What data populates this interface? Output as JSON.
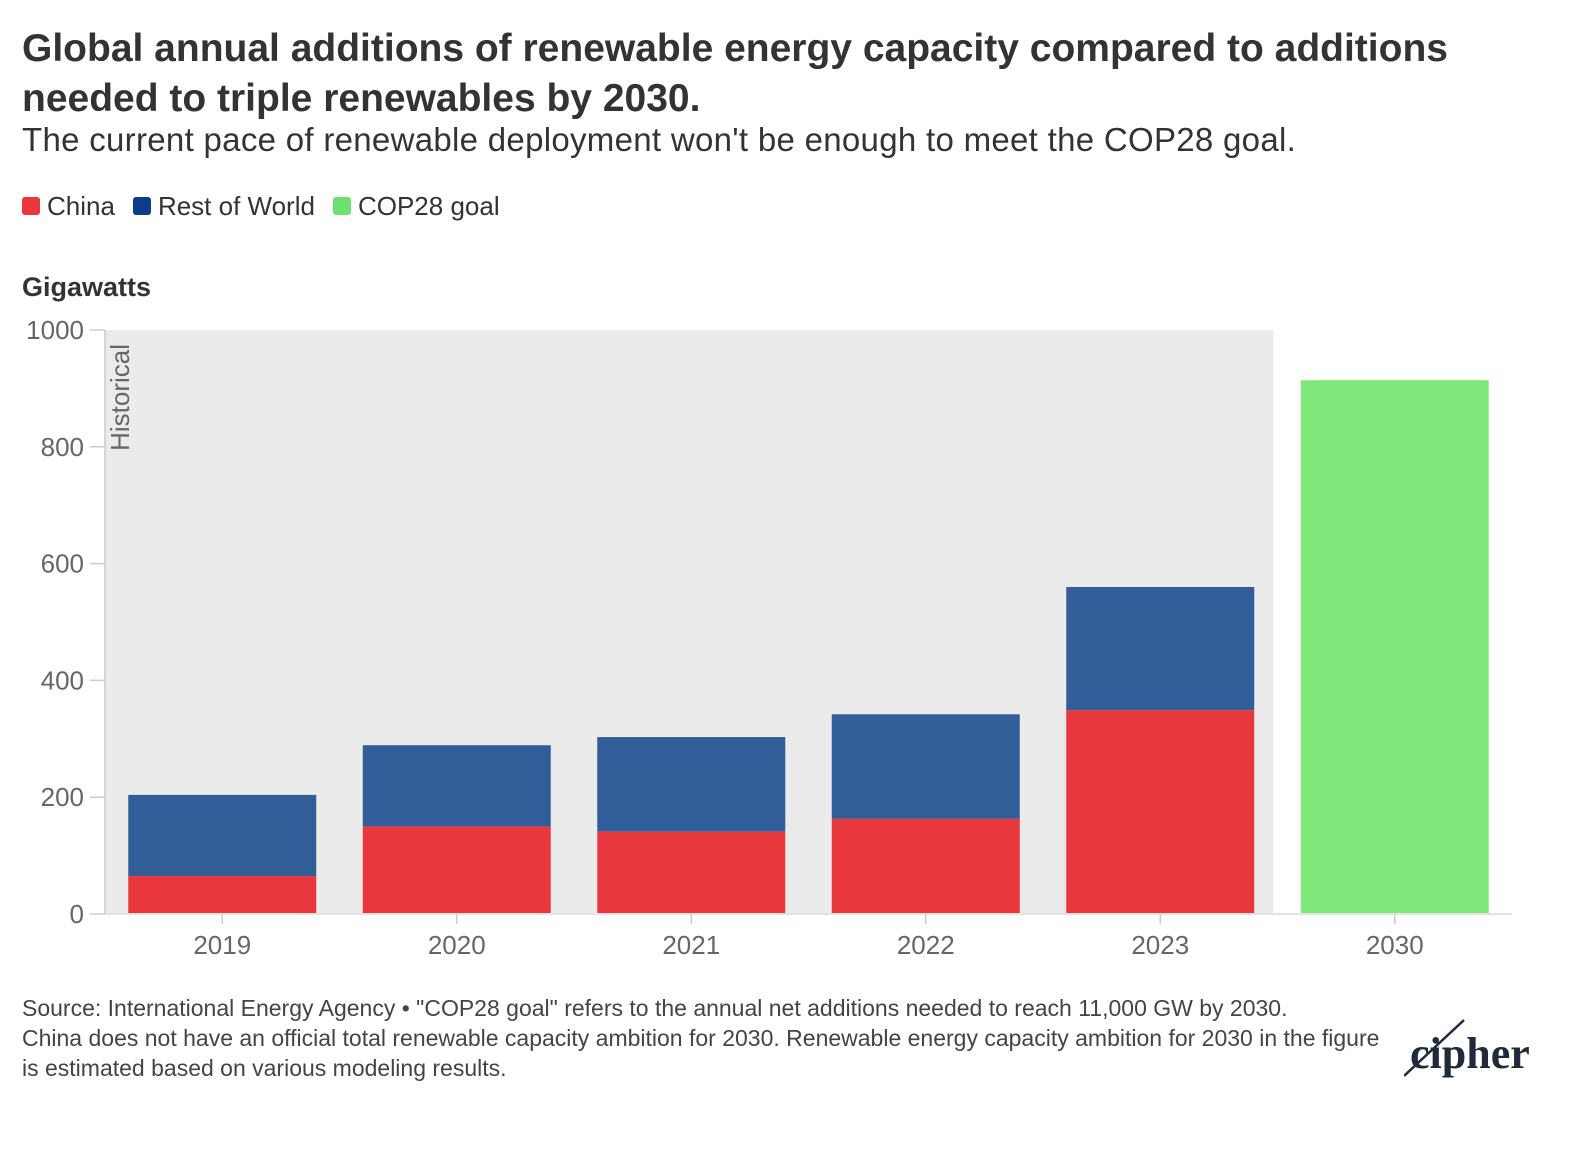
{
  "title": "Global annual additions of renewable energy capacity compared to additions needed to triple renewables by 2030.",
  "subtitle": "The current pace of renewable deployment won't be enough to meet the COP28 goal.",
  "legend": [
    {
      "label": "China",
      "color": "#e8383d"
    },
    {
      "label": "Rest of World",
      "color": "#0c3d8c"
    },
    {
      "label": "COP28 goal",
      "color": "#6ee06e"
    }
  ],
  "colors": {
    "china_bar": "#e8383d",
    "rest_bar": "#315e99",
    "goal_bar": "#80e87a",
    "historical_band": "#ebebeb"
  },
  "footer": {
    "line1": "Source: International Energy Agency • \"COP28 goal\" refers to the annual net additions needed to reach 11,000 GW by 2030.",
    "line2": "China does not have an official total renewable capacity ambition for 2030. Renewable energy capacity ambition for 2030 in the figure is estimated based on various modeling results."
  },
  "logo_text": "cipher",
  "chart_data": {
    "type": "bar",
    "stacked": true,
    "title": "Global annual additions of renewable energy capacity compared to additions needed to triple renewables by 2030.",
    "ylabel": "Gigawatts",
    "xlabel": "",
    "categories": [
      "2019",
      "2020",
      "2021",
      "2022",
      "2023",
      "2030"
    ],
    "series": [
      {
        "name": "China",
        "values": [
          65,
          150,
          141,
          163,
          349,
          null
        ]
      },
      {
        "name": "Rest of World",
        "values": [
          139,
          139,
          162,
          179,
          211,
          null
        ]
      },
      {
        "name": "COP28 goal",
        "values": [
          null,
          null,
          null,
          null,
          null,
          914
        ]
      }
    ],
    "ylim": [
      0,
      1000
    ],
    "yticks": [
      0,
      200,
      400,
      600,
      800,
      1000
    ],
    "historical_band_label": "Historical",
    "historical_categories": [
      "2019",
      "2020",
      "2021",
      "2022",
      "2023"
    ],
    "legend_position": "top-left",
    "grid": false
  }
}
